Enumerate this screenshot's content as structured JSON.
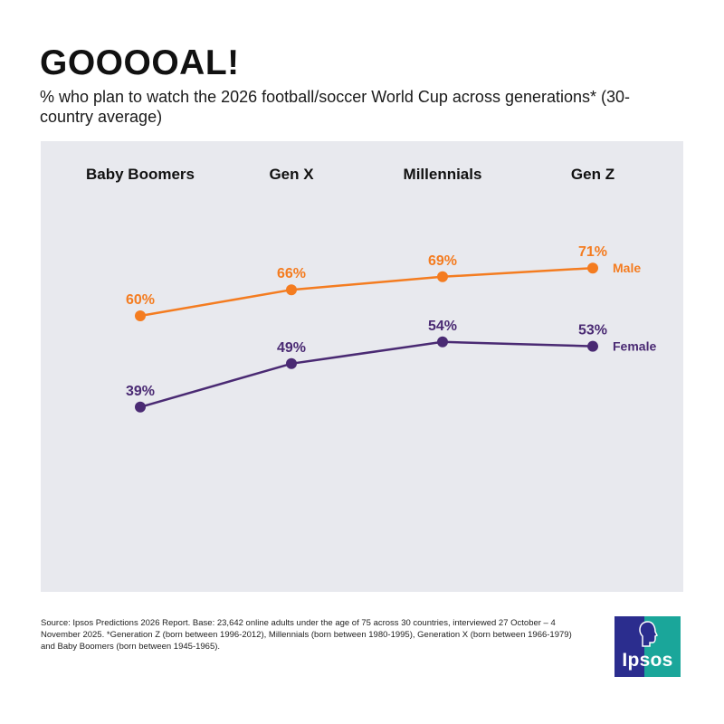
{
  "title": "GOOOOAL!",
  "subtitle": "% who plan to watch the 2026 football/soccer World Cup across generations* (30-country average)",
  "chart_data": {
    "type": "line",
    "categories": [
      "Baby Boomers",
      "Gen X",
      "Millennials",
      "Gen Z"
    ],
    "series": [
      {
        "name": "Male",
        "values": [
          60,
          66,
          69,
          71
        ],
        "labels": [
          "60%",
          "66%",
          "69%",
          "71%"
        ],
        "color": "#f47c20"
      },
      {
        "name": "Female",
        "values": [
          39,
          49,
          54,
          53
        ],
        "labels": [
          "39%",
          "49%",
          "54%",
          "53%"
        ],
        "color": "#4a2a73"
      }
    ],
    "unit": "%",
    "ylim": [
      0,
      100
    ],
    "grid": false,
    "legend": "inline-right"
  },
  "colors": {
    "panel_background": "#e8e9ee",
    "male": "#f47c20",
    "female": "#4a2a73",
    "logo_navy": "#2b2d8e",
    "logo_teal": "#1aa69a"
  },
  "footer": {
    "source": "Source: Ipsos Predictions 2026 Report. Base: 23,642 online adults under the age of 75 across 30 countries, interviewed 27 October – 4 November 2025. *Generation Z (born between 1996-2012), Millennials (born between 1980-1995), Generation X (born between 1966-1979) and Baby Boomers (born between 1945-1965)."
  },
  "logo": {
    "text": "Ipsos",
    "icon": "profile-head-icon"
  }
}
